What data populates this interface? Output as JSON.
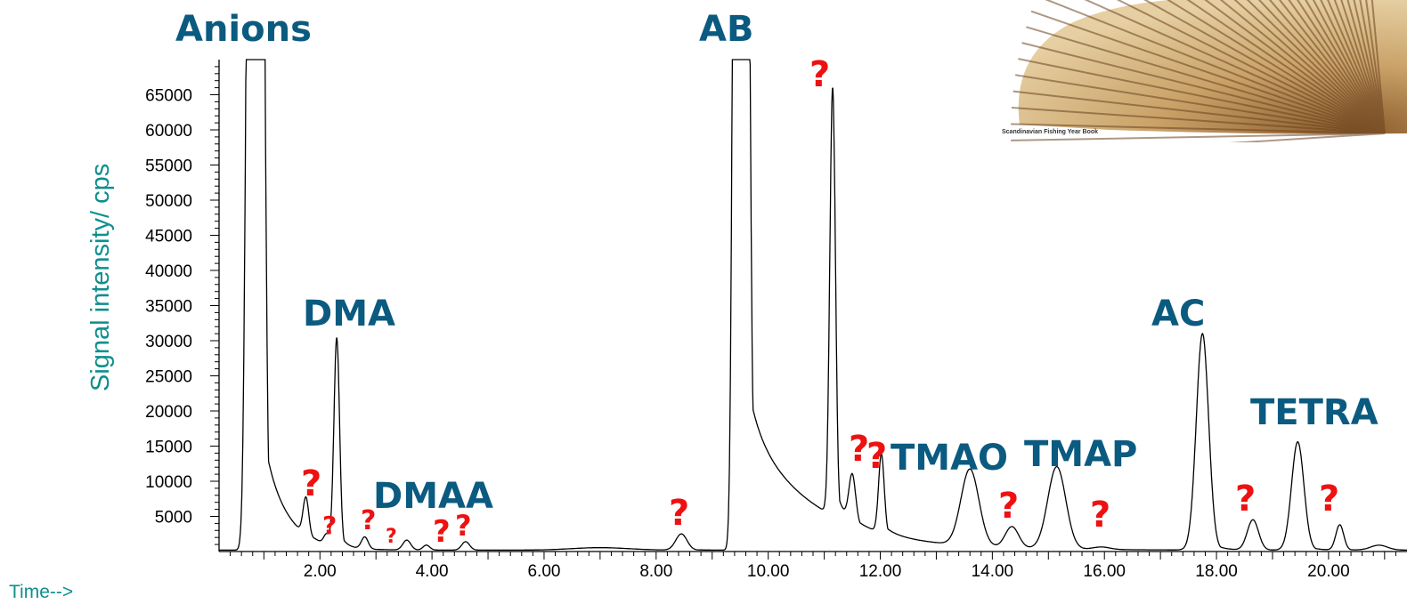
{
  "chart_data": {
    "type": "line",
    "ylabel": "Signal intensity/ cps",
    "xlabel": "Time-->",
    "xlim": [
      0.2,
      21.4
    ],
    "ylim": [
      0,
      70000
    ],
    "grid": false,
    "y_ticks": [
      "5000",
      "10000",
      "15000",
      "20000",
      "25000",
      "30000",
      "35000",
      "40000",
      "45000",
      "50000",
      "55000",
      "60000",
      "65000"
    ],
    "y_tick_values": [
      5000,
      10000,
      15000,
      20000,
      25000,
      30000,
      35000,
      40000,
      45000,
      50000,
      55000,
      60000,
      65000
    ],
    "x_ticks": [
      "2.00",
      "4.00",
      "6.00",
      "8.00",
      "10.00",
      "12.00",
      "14.00",
      "16.00",
      "18.00",
      "20.00"
    ],
    "x_tick_values": [
      2,
      4,
      6,
      8,
      10,
      12,
      14,
      16,
      18,
      20
    ],
    "series": [
      {
        "baseline": 200,
        "peaks": [
          {
            "t": 0.75,
            "h": 140000,
            "w": 0.06,
            "tail": 0.1
          },
          {
            "t": 0.95,
            "h": 140000,
            "w": 0.06,
            "tail": 0.4
          },
          {
            "t": 1.75,
            "h": 5300,
            "w": 0.05,
            "tail": 0.1
          },
          {
            "t": 2.12,
            "h": 1400,
            "w": 0.05,
            "tail": 0.05
          },
          {
            "t": 2.3,
            "h": 29700,
            "w": 0.05,
            "tail": 0.1
          },
          {
            "t": 2.8,
            "h": 1700,
            "w": 0.06,
            "tail": 0.05
          },
          {
            "t": 3.55,
            "h": 1400,
            "w": 0.07,
            "tail": 0.05
          },
          {
            "t": 3.9,
            "h": 700,
            "w": 0.06,
            "tail": 0.05
          },
          {
            "t": 4.6,
            "h": 1200,
            "w": 0.07,
            "tail": 0.05
          },
          {
            "t": 7.0,
            "h": 350,
            "w": 0.5,
            "tail": 0.1
          },
          {
            "t": 8.45,
            "h": 2300,
            "w": 0.1,
            "tail": 0.15
          },
          {
            "t": 9.42,
            "h": 150000,
            "w": 0.05,
            "tail": 0.2
          },
          {
            "t": 9.6,
            "h": 150000,
            "w": 0.06,
            "tail": 1.2
          },
          {
            "t": 11.15,
            "h": 61000,
            "w": 0.05,
            "tail": 0.12
          },
          {
            "t": 11.5,
            "h": 6800,
            "w": 0.06,
            "tail": 0.25
          },
          {
            "t": 12.02,
            "h": 11200,
            "w": 0.05,
            "tail": 0.2
          },
          {
            "t": 13.6,
            "h": 10900,
            "w": 0.16,
            "tail": 0.15
          },
          {
            "t": 14.35,
            "h": 3000,
            "w": 0.12,
            "tail": 0.1
          },
          {
            "t": 15.15,
            "h": 11700,
            "w": 0.16,
            "tail": 0.15
          },
          {
            "t": 15.95,
            "h": 350,
            "w": 0.15,
            "tail": 0.05
          },
          {
            "t": 17.75,
            "h": 30800,
            "w": 0.11,
            "tail": 0.15
          },
          {
            "t": 18.65,
            "h": 4300,
            "w": 0.1,
            "tail": 0.1
          },
          {
            "t": 19.45,
            "h": 15400,
            "w": 0.11,
            "tail": 0.15
          },
          {
            "t": 20.2,
            "h": 3600,
            "w": 0.07,
            "tail": 0.1
          },
          {
            "t": 20.9,
            "h": 700,
            "w": 0.15,
            "tail": 0.1
          }
        ]
      }
    ],
    "annotations": [
      {
        "text": "Anions",
        "kind": "peak"
      },
      {
        "text": "AB",
        "kind": "peak"
      },
      {
        "text": "DMA",
        "kind": "peak"
      },
      {
        "text": "DMAA",
        "kind": "peak"
      },
      {
        "text": "TMAO",
        "kind": "peak"
      },
      {
        "text": "TMAP",
        "kind": "peak"
      },
      {
        "text": "AC",
        "kind": "peak"
      },
      {
        "text": "TETRA",
        "kind": "peak"
      },
      {
        "text": "?",
        "kind": "unknown"
      }
    ]
  },
  "image": {
    "caption": "Scandinavian Fishing Year Book"
  },
  "colors": {
    "peak_label": "#0b5a80",
    "unknown_label": "#ee1111",
    "axis_title": "#0e8f8c",
    "trace": "#000000"
  }
}
